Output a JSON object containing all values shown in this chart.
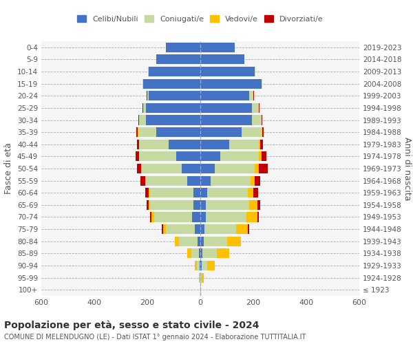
{
  "age_groups": [
    "100+",
    "95-99",
    "90-94",
    "85-89",
    "80-84",
    "75-79",
    "70-74",
    "65-69",
    "60-64",
    "55-59",
    "50-54",
    "45-49",
    "40-44",
    "35-39",
    "30-34",
    "25-29",
    "20-24",
    "15-19",
    "10-14",
    "5-9",
    "0-4"
  ],
  "birth_years": [
    "≤ 1923",
    "1924-1928",
    "1929-1933",
    "1934-1938",
    "1939-1943",
    "1944-1948",
    "1949-1953",
    "1954-1958",
    "1959-1963",
    "1964-1968",
    "1969-1973",
    "1974-1978",
    "1979-1983",
    "1984-1988",
    "1989-1993",
    "1994-1998",
    "1999-2003",
    "2004-2008",
    "2009-2013",
    "2014-2018",
    "2019-2023"
  ],
  "colors": {
    "celibi": "#4472c4",
    "coniugati": "#c5d9a0",
    "vedovi": "#ffc000",
    "divorziati": "#c00000"
  },
  "males": {
    "celibi": [
      1,
      1,
      3,
      5,
      10,
      20,
      30,
      25,
      25,
      50,
      70,
      90,
      120,
      165,
      205,
      205,
      195,
      215,
      195,
      165,
      130
    ],
    "coniugati": [
      0,
      2,
      10,
      30,
      70,
      110,
      145,
      165,
      165,
      155,
      150,
      140,
      110,
      70,
      25,
      10,
      5,
      2,
      2,
      0,
      0
    ],
    "vedovi": [
      0,
      2,
      8,
      15,
      15,
      10,
      10,
      5,
      5,
      3,
      3,
      2,
      2,
      2,
      1,
      1,
      1,
      0,
      0,
      0,
      0
    ],
    "divorziati": [
      0,
      0,
      0,
      0,
      0,
      5,
      5,
      8,
      12,
      18,
      15,
      12,
      8,
      5,
      3,
      1,
      1,
      0,
      0,
      0,
      0
    ]
  },
  "females": {
    "celibi": [
      1,
      1,
      5,
      8,
      12,
      15,
      20,
      20,
      25,
      40,
      55,
      75,
      110,
      155,
      195,
      195,
      185,
      230,
      205,
      165,
      130
    ],
    "coniugati": [
      0,
      3,
      20,
      55,
      90,
      120,
      155,
      165,
      155,
      150,
      150,
      145,
      110,
      75,
      35,
      25,
      15,
      5,
      2,
      0,
      0
    ],
    "vedovi": [
      2,
      8,
      30,
      45,
      50,
      45,
      40,
      30,
      20,
      15,
      15,
      10,
      5,
      3,
      2,
      1,
      1,
      0,
      0,
      0,
      0
    ],
    "divorziati": [
      0,
      0,
      0,
      2,
      2,
      5,
      5,
      10,
      18,
      20,
      35,
      20,
      12,
      5,
      3,
      2,
      1,
      0,
      0,
      0,
      0
    ]
  },
  "title": "Popolazione per età, sesso e stato civile - 2024",
  "subtitle": "COMUNE DI MELENDUGNO (LE) - Dati ISTAT 1° gennaio 2024 - Elaborazione TUTTITALIA.IT",
  "ylabel_left": "Fasce di età",
  "ylabel_right": "Anni di nascita",
  "xlim": 600,
  "legend_labels": [
    "Celibi/Nubili",
    "Coniugati/e",
    "Vedovi/e",
    "Divorziati/e"
  ],
  "bg_color": "#ffffff"
}
